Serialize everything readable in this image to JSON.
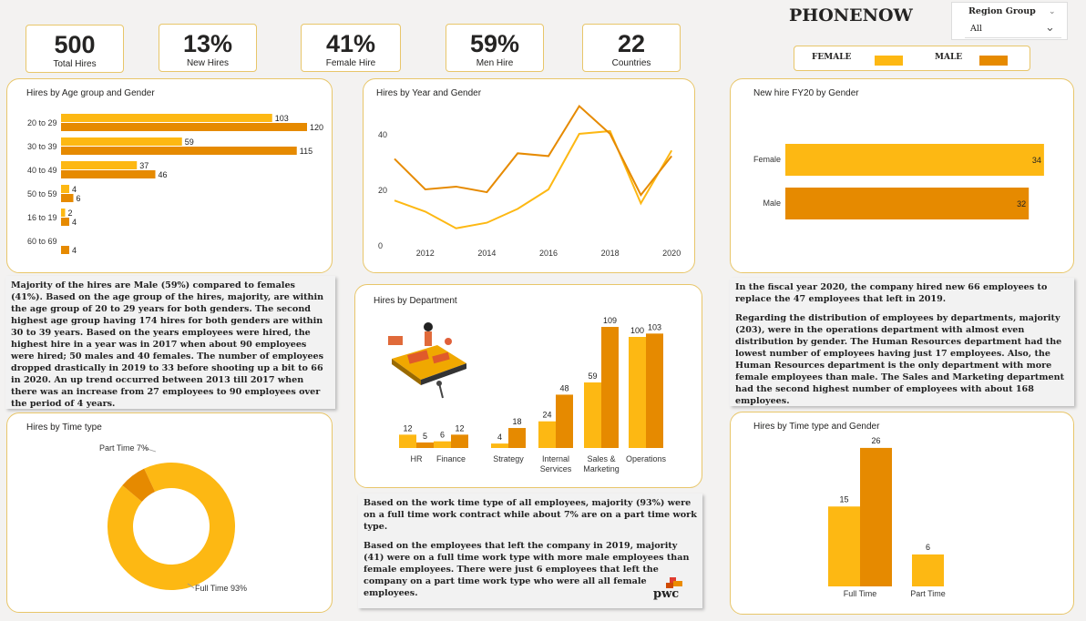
{
  "brand": "PHONENOW",
  "region": {
    "label": "Region Group",
    "value": "All"
  },
  "legend": {
    "female": "FEMALE",
    "male": "MALE"
  },
  "colors": {
    "female": "#fdb813",
    "male": "#e68a00"
  },
  "kpis": [
    {
      "value": "500",
      "label": "Total Hires"
    },
    {
      "value": "13%",
      "label": "New Hires"
    },
    {
      "value": "41%",
      "label": "Female Hire"
    },
    {
      "value": "59%",
      "label": "Men Hire"
    },
    {
      "value": "22",
      "label": "Countries"
    }
  ],
  "titles": {
    "age": "Hires by Age group and Gender",
    "year": "Hires by Year and Gender",
    "fy20": "New hire FY20 by Gender",
    "dept": "Hires by Department",
    "timetype": "Hires by Time type",
    "timegender": "Hires by Time type and Gender"
  },
  "notes": {
    "left": [
      "Majority of the hires are Male (59%) compared to females (41%). Based on the age group of the hires, majority, are within the age group of 20 to 29 years for both genders. The second highest age group having 174 hires for both genders are within 30 to 39 years. Based on the years employees were hired, the highest hire in a year was in 2017 when about 90 employees were hired; 50 males and 40 females. The number of employees dropped drastically in 2019 to 33 before shooting up a bit to 66 in 2020. An up trend occurred between 2013 till 2017 when there was an increase from 27 employees to 90 employees over the period of 4 years."
    ],
    "right": [
      "In the fiscal year 2020, the company hired new 66 employees to replace the 47 employees that left in 2019.",
      "Regarding the distribution of employees by departments, majority (203), were in the operations department with almost even distribution by gender. The Human Resources department had the lowest number of employees having just 17 employees. Also, the Human Resources department is the only department with more female employees than male. The Sales and Marketing department had the second highest number of employees with about 168 employees."
    ],
    "mid": [
      "Based on the work time type of all employees, majority (93%) were on a full time work contract while about 7% are on a part time work type.",
      "Based on the employees that left the company in 2019, majority (41) were on a full time work type with more male employees than female employees. There were just 6 employees that left the company on a part time work type who were all all female employees."
    ]
  },
  "pwc": "pwc",
  "chart_data": [
    {
      "id": "age",
      "type": "bar",
      "orientation": "horizontal",
      "title": "Hires by Age group and Gender",
      "categories": [
        "20 to 29",
        "30 to 39",
        "40 to 49",
        "50 to 59",
        "16 to 19",
        "60 to 69"
      ],
      "series": [
        {
          "name": "FEMALE",
          "values": [
            103,
            59,
            37,
            4,
            2,
            null
          ]
        },
        {
          "name": "MALE",
          "values": [
            120,
            115,
            46,
            6,
            4,
            4
          ]
        }
      ]
    },
    {
      "id": "year",
      "type": "line",
      "title": "Hires by Year and Gender",
      "x": [
        2011,
        2012,
        2013,
        2014,
        2015,
        2016,
        2017,
        2018,
        2019,
        2020
      ],
      "xticks": [
        "2012",
        "2014",
        "2016",
        "2018",
        "2020"
      ],
      "yticks": [
        "0",
        "20",
        "40"
      ],
      "ylim": [
        0,
        50
      ],
      "series": [
        {
          "name": "FEMALE",
          "values": [
            16,
            12,
            6,
            8,
            13,
            20,
            40,
            41,
            15,
            34
          ]
        },
        {
          "name": "MALE",
          "values": [
            31,
            20,
            21,
            19,
            33,
            32,
            50,
            40,
            18,
            32
          ]
        }
      ]
    },
    {
      "id": "fy20",
      "type": "bar",
      "orientation": "horizontal",
      "title": "New hire FY20 by Gender",
      "categories": [
        "Female",
        "Male"
      ],
      "values": [
        34,
        32
      ]
    },
    {
      "id": "dept",
      "type": "bar",
      "title": "Hires by Department",
      "categories": [
        "HR",
        "Finance",
        "Strategy",
        "Internal Services",
        "Sales & Marketing",
        "Operations"
      ],
      "series": [
        {
          "name": "FEMALE",
          "values": [
            12,
            6,
            4,
            24,
            59,
            100
          ]
        },
        {
          "name": "MALE",
          "values": [
            5,
            12,
            18,
            48,
            109,
            103
          ]
        }
      ]
    },
    {
      "id": "timetype",
      "type": "pie",
      "title": "Hires by Time type",
      "categories": [
        "Full Time",
        "Part Time"
      ],
      "values": [
        93,
        7
      ],
      "labels": [
        "Full Time 93%",
        "Part Time 7%"
      ]
    },
    {
      "id": "timegender",
      "type": "bar",
      "title": "Hires by Time type and Gender",
      "categories": [
        "Full Time",
        "Part Time"
      ],
      "series": [
        {
          "name": "FEMALE",
          "values": [
            15,
            6
          ]
        },
        {
          "name": "MALE",
          "values": [
            26,
            null
          ]
        }
      ]
    }
  ]
}
